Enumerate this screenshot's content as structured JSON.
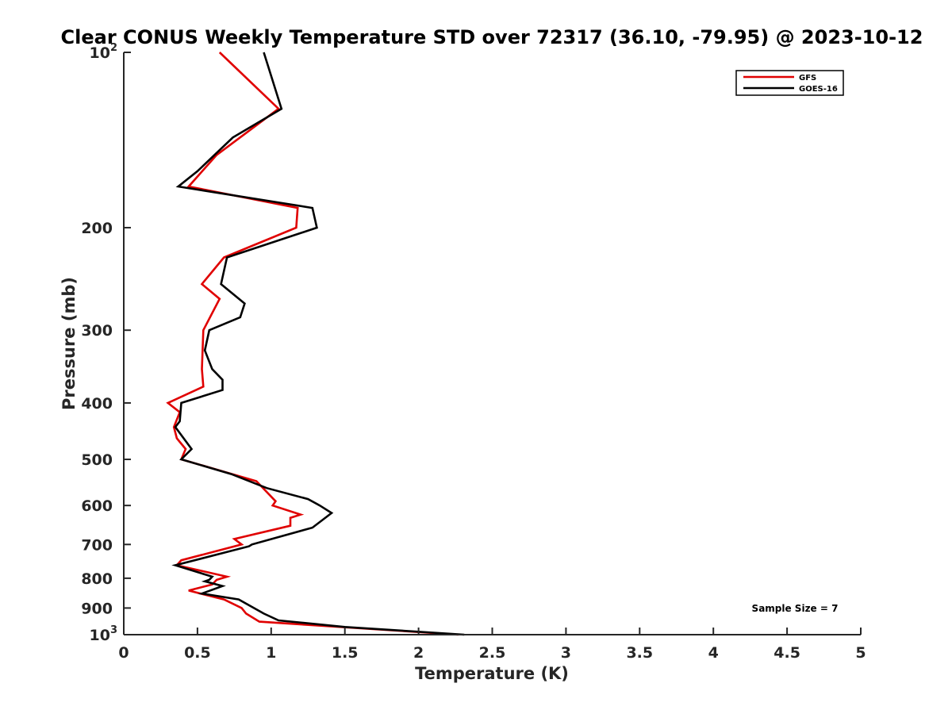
{
  "chart_data": {
    "type": "line",
    "title": "Clear CONUS Weekly Temperature STD over 72317 (36.10, -79.95) @ 2023-10-12",
    "xlabel": "Temperature (K)",
    "ylabel": "Pressure (mb)",
    "xlim": [
      0,
      5
    ],
    "ylim": [
      100,
      1000
    ],
    "y_scale": "log",
    "y_reversed": true,
    "grid": false,
    "legend_position": "top-right",
    "x_ticks": [
      {
        "value": 0,
        "label": "0"
      },
      {
        "value": 0.5,
        "label": "0.5"
      },
      {
        "value": 1,
        "label": "1"
      },
      {
        "value": 1.5,
        "label": "1.5"
      },
      {
        "value": 2,
        "label": "2"
      },
      {
        "value": 2.5,
        "label": "2.5"
      },
      {
        "value": 3,
        "label": "3"
      },
      {
        "value": 3.5,
        "label": "3.5"
      },
      {
        "value": 4,
        "label": "4"
      },
      {
        "value": 4.5,
        "label": "4.5"
      },
      {
        "value": 5,
        "label": "5"
      }
    ],
    "y_ticks": [
      {
        "value": 100,
        "base": "10",
        "exp": "2"
      },
      {
        "value": 200,
        "base": "200",
        "exp": ""
      },
      {
        "value": 300,
        "base": "300",
        "exp": ""
      },
      {
        "value": 400,
        "base": "400",
        "exp": ""
      },
      {
        "value": 500,
        "base": "500",
        "exp": ""
      },
      {
        "value": 600,
        "base": "600",
        "exp": ""
      },
      {
        "value": 700,
        "base": "700",
        "exp": ""
      },
      {
        "value": 800,
        "base": "800",
        "exp": ""
      },
      {
        "value": 900,
        "base": "900",
        "exp": ""
      },
      {
        "value": 1000,
        "base": "10",
        "exp": "3"
      }
    ],
    "series": [
      {
        "name": "GFS",
        "color": "#e00000",
        "points": [
          [
            0.65,
            100
          ],
          [
            1.05,
            125
          ],
          [
            0.63,
            150
          ],
          [
            0.44,
            170
          ],
          [
            1.18,
            185
          ],
          [
            1.17,
            200
          ],
          [
            0.68,
            225
          ],
          [
            0.53,
            250
          ],
          [
            0.65,
            265
          ],
          [
            0.54,
            300
          ],
          [
            0.53,
            350
          ],
          [
            0.54,
            375
          ],
          [
            0.3,
            400
          ],
          [
            0.38,
            415
          ],
          [
            0.34,
            440
          ],
          [
            0.36,
            460
          ],
          [
            0.42,
            480
          ],
          [
            0.39,
            500
          ],
          [
            0.9,
            545
          ],
          [
            1.03,
            590
          ],
          [
            1.01,
            600
          ],
          [
            1.2,
            622
          ],
          [
            1.13,
            630
          ],
          [
            1.13,
            650
          ],
          [
            0.75,
            685
          ],
          [
            0.8,
            700
          ],
          [
            0.39,
            745
          ],
          [
            0.36,
            760
          ],
          [
            0.7,
            795
          ],
          [
            0.63,
            805
          ],
          [
            0.6,
            820
          ],
          [
            0.44,
            840
          ],
          [
            0.68,
            870
          ],
          [
            0.8,
            900
          ],
          [
            0.83,
            920
          ],
          [
            0.92,
            950
          ],
          [
            2.27,
            1000
          ]
        ]
      },
      {
        "name": "GOES-16",
        "color": "#000000",
        "points": [
          [
            0.95,
            100
          ],
          [
            1.07,
            125
          ],
          [
            0.74,
            140
          ],
          [
            0.5,
            160
          ],
          [
            0.37,
            170
          ],
          [
            1.28,
            185
          ],
          [
            1.31,
            200
          ],
          [
            0.7,
            225
          ],
          [
            0.66,
            250
          ],
          [
            0.82,
            270
          ],
          [
            0.79,
            285
          ],
          [
            0.58,
            300
          ],
          [
            0.55,
            325
          ],
          [
            0.6,
            350
          ],
          [
            0.67,
            365
          ],
          [
            0.67,
            380
          ],
          [
            0.39,
            400
          ],
          [
            0.38,
            430
          ],
          [
            0.35,
            440
          ],
          [
            0.46,
            480
          ],
          [
            0.39,
            500
          ],
          [
            0.73,
            530
          ],
          [
            0.97,
            560
          ],
          [
            1.25,
            585
          ],
          [
            1.33,
            600
          ],
          [
            1.41,
            618
          ],
          [
            1.28,
            655
          ],
          [
            0.87,
            700
          ],
          [
            0.85,
            705
          ],
          [
            0.35,
            760
          ],
          [
            0.6,
            795
          ],
          [
            0.58,
            805
          ],
          [
            0.55,
            810
          ],
          [
            0.67,
            825
          ],
          [
            0.53,
            850
          ],
          [
            0.78,
            870
          ],
          [
            0.95,
            920
          ],
          [
            1.05,
            945
          ],
          [
            1.5,
            970
          ],
          [
            2.31,
            1000
          ]
        ]
      }
    ],
    "annotations": [
      {
        "text": "Sample Size = 7",
        "position": "bottom-right"
      }
    ]
  }
}
